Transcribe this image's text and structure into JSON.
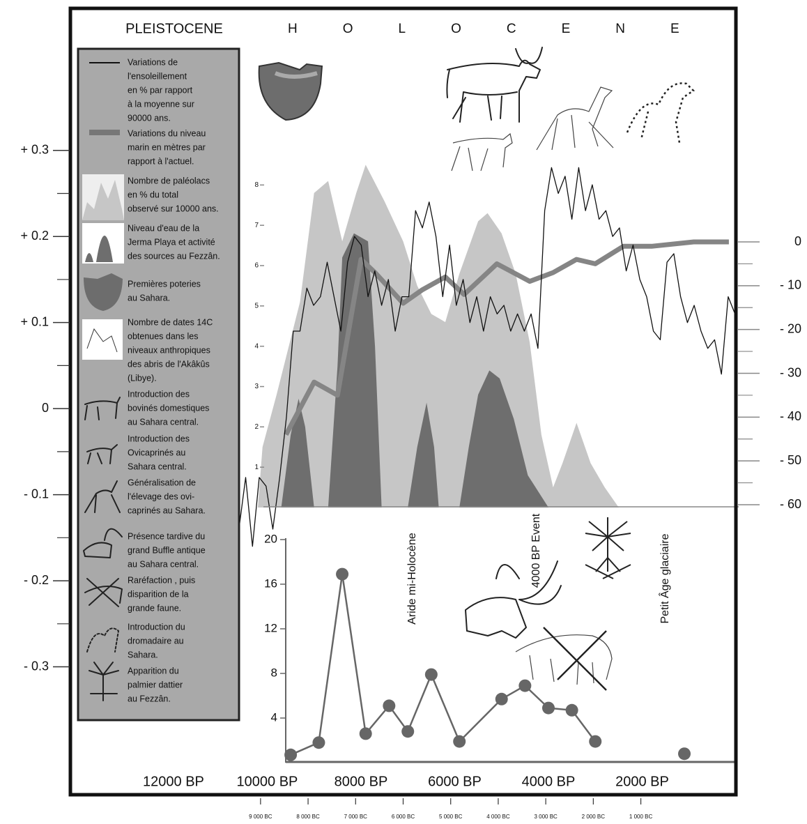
{
  "header": {
    "left": "PLEISTOCENE",
    "right": "HOLOCENE"
  },
  "legend": {
    "entries": [
      {
        "lines": [
          "Variations de",
          "l'ensoleillement",
          "en % par rapport",
          "à la moyenne sur",
          "90000 ans."
        ]
      },
      {
        "lines": [
          "Variations du niveau",
          "marin en mètres par",
          "rapport à l'actuel."
        ]
      },
      {
        "lines": [
          "Nombre de paléolacs",
          "en % du total",
          "observé sur 10000 ans."
        ]
      },
      {
        "lines": [
          "Niveau d'eau de la",
          "Jerma Playa et activité",
          "des sources au Fezzân."
        ]
      },
      {
        "lines": [
          "Premières poteries",
          "au Sahara."
        ]
      },
      {
        "lines": [
          "Nombre de dates 14C",
          "obtenues dans les",
          "niveaux anthropiques",
          "des abris de l'Akâkûs",
          "(Libye)."
        ]
      },
      {
        "lines": [
          "Introduction des",
          "bovinés domestiques",
          "au Sahara central."
        ]
      },
      {
        "lines": [
          "Introduction des",
          "Ovicaprinés au",
          "Sahara central."
        ]
      },
      {
        "lines": [
          "Généralisation de",
          "l'élevage des ovi-",
          "caprinés au Sahara."
        ]
      },
      {
        "lines": [
          "Présence tardive du",
          "grand Buffle antique",
          "au Sahara central."
        ]
      },
      {
        "lines": [
          "Raréfaction , puis",
          "disparition de la",
          "grande faune."
        ]
      },
      {
        "lines": [
          "Introduction du",
          "dromadaire au",
          "Sahara."
        ]
      },
      {
        "lines": [
          "Apparition du",
          "palmier dattier",
          "au Fezzân."
        ]
      }
    ]
  },
  "chart_data": [
    {
      "type": "line",
      "xlim": [
        14200,
        0
      ],
      "ylim": [
        -0.4,
        0.35
      ],
      "yticks": [
        {
          "value": 0.3,
          "label": "+ 0.3"
        },
        {
          "value": 0.2,
          "label": "+ 0.2"
        },
        {
          "value": 0.1,
          "label": "+ 0.1"
        },
        0,
        {
          "value": -0.1,
          "label": "- 0.1"
        },
        {
          "value": -0.2,
          "label": "- 0.2"
        },
        {
          "value": -0.3,
          "label": "- 0.3"
        }
      ],
      "y_minor_ticks": [
        0.25,
        0.15,
        0.05,
        -0.05,
        -0.15,
        -0.25
      ],
      "series": [
        {
          "color": "#111111",
          "line_width": 1.3,
          "x": [
            10750,
            10605,
            10460,
            10315,
            10170,
            10025,
            9880,
            9735,
            9590,
            9445,
            9300,
            9155,
            9010,
            8865,
            8720,
            8575,
            8430,
            8285,
            8140,
            7995,
            7850,
            7705,
            7560,
            7415,
            7270,
            7125,
            6980,
            6835,
            6690,
            6545,
            6400,
            6255,
            6110,
            5965,
            5820,
            5675,
            5530,
            5385,
            5240,
            5095,
            4950,
            4805,
            4660,
            4515,
            4370,
            4225,
            4080,
            3935,
            3790,
            3645,
            3500,
            3355,
            3210,
            3065,
            2920,
            2775,
            2630,
            2485,
            2340,
            2195,
            2050,
            1905,
            1760,
            1615,
            1470,
            1325,
            1180,
            1035,
            890,
            745,
            600,
            455,
            310,
            165,
            20
          ],
          "values": [
            -0.09,
            -0.14,
            -0.08,
            -0.16,
            -0.08,
            -0.09,
            -0.14,
            -0.08,
            -0.01,
            0.09,
            0.09,
            0.14,
            0.12,
            0.13,
            0.17,
            0.13,
            0.09,
            0.17,
            0.2,
            0.19,
            0.13,
            0.16,
            0.12,
            0.15,
            0.09,
            0.13,
            0.13,
            0.23,
            0.21,
            0.24,
            0.2,
            0.13,
            0.19,
            0.12,
            0.15,
            0.1,
            0.13,
            0.09,
            0.13,
            0.11,
            0.12,
            0.09,
            0.11,
            0.09,
            0.11,
            0.07,
            0.23,
            0.28,
            0.25,
            0.27,
            0.22,
            0.28,
            0.23,
            0.26,
            0.22,
            0.23,
            0.2,
            0.21,
            0.16,
            0.19,
            0.15,
            0.13,
            0.09,
            0.08,
            0.17,
            0.18,
            0.13,
            0.1,
            0.12,
            0.09,
            0.07,
            0.08,
            0.04,
            0.13,
            0.11
          ]
        }
      ]
    },
    {
      "type": "line",
      "axis": "y2",
      "xlim": [
        14200,
        0
      ],
      "ylim": [
        -60,
        0
      ],
      "yticks": [
        0,
        {
          "value": -10,
          "label": "- 10"
        },
        {
          "value": -20,
          "label": "- 20"
        },
        {
          "value": -30,
          "label": "- 30"
        },
        {
          "value": -40,
          "label": "- 40"
        },
        {
          "value": -50,
          "label": "- 50"
        },
        {
          "value": -60,
          "label": "- 60"
        }
      ],
      "y_minor_ticks": [
        -5,
        -15,
        -25,
        -35,
        -45,
        -55
      ],
      "series": [
        {
          "color": "#858585",
          "line_width": 7,
          "x": [
            9600,
            9000,
            8500,
            8000,
            7700,
            7100,
            6700,
            6200,
            5800,
            5300,
            5100,
            4400,
            3900,
            3400,
            3000,
            2400,
            1800,
            900,
            150
          ],
          "values": [
            -44,
            -32,
            -35,
            -4,
            -7,
            -14,
            -11,
            -8,
            -12,
            -7,
            -5,
            -9,
            -7,
            -4,
            -5,
            -1,
            -1,
            0,
            0
          ]
        }
      ]
    },
    {
      "type": "area",
      "xlim": [
        14200,
        0
      ],
      "ylim": [
        0,
        8.3
      ],
      "yticks": [
        1,
        2,
        3,
        4,
        5,
        6,
        7,
        8
      ],
      "series": [
        {
          "color": "#c6c6c6",
          "x": [
            10200,
            10100,
            9800,
            9300,
            9000,
            8700,
            8400,
            8100,
            7900,
            7500,
            7100,
            6800,
            6500,
            6200,
            5900,
            5500,
            5300,
            5000,
            4700,
            4400,
            4150,
            3900,
            3700,
            3400,
            3100,
            2800,
            2500
          ],
          "values": [
            0,
            1.5,
            2.8,
            5.1,
            7.8,
            8.1,
            6.6,
            7.8,
            8.5,
            7.6,
            6.6,
            5.5,
            4.8,
            4.6,
            5.8,
            7.1,
            7.3,
            6.8,
            5.8,
            4.1,
            1.8,
            0.5,
            1.1,
            2.1,
            1.1,
            0.5,
            0
          ]
        },
        {
          "color": "#6e6e6e",
          "x": [
            9700,
            9500,
            9330,
            9190,
            9000,
            8700,
            8500,
            8400,
            8150,
            7850,
            7700,
            7560,
            7000,
            6800,
            6600,
            6440,
            6340,
            5900,
            5700,
            5500,
            5260,
            5040,
            4740,
            4440,
            4000
          ],
          "values": [
            0,
            1.8,
            2.7,
            2,
            0,
            0,
            3.5,
            6.2,
            6.8,
            6.6,
            4,
            0,
            0,
            1.5,
            2.6,
            1.5,
            0,
            0,
            1.5,
            2.8,
            3.4,
            3.2,
            2.2,
            0.8,
            0
          ]
        }
      ]
    },
    {
      "type": "line",
      "markers": true,
      "xlim": [
        14200,
        0
      ],
      "ylim": [
        0,
        20
      ],
      "yticks": [
        4,
        8,
        12,
        16,
        20
      ],
      "xticks": [
        {
          "value": 12000,
          "label": "12000 BP"
        },
        {
          "value": 10000,
          "label": "10000 BP"
        },
        {
          "value": 8000,
          "label": "8000 BP"
        },
        {
          "value": 6000,
          "label": "6000 BP"
        },
        {
          "value": 4000,
          "label": "4000 BP"
        },
        {
          "value": 2000,
          "label": "2000 BP"
        }
      ],
      "x2lim": [
        13000,
        -1000
      ],
      "x2ticks": [
        {
          "value": 9000,
          "label": "9 000 BC"
        },
        {
          "value": 8000,
          "label": "8 000 BC"
        },
        {
          "value": 7000,
          "label": "7 000 BC"
        },
        {
          "value": 6000,
          "label": "6 000 BC"
        },
        {
          "value": 5000,
          "label": "5 000 BC"
        },
        {
          "value": 4000,
          "label": "4 000 BC"
        },
        {
          "value": 3000,
          "label": "3 000 BC"
        },
        {
          "value": 2000,
          "label": "2 000 BC"
        },
        {
          "value": 1000,
          "label": "1 000 BC"
        }
      ],
      "annotations": [
        "Aride mi-Holocène",
        "4000 BP Event",
        "Petit Âge glaciaire"
      ],
      "series": [
        {
          "color": "#666666",
          "x": [
            9500,
            8900,
            8400,
            7900,
            7400,
            7000,
            6500,
            5900,
            5000,
            4500,
            4000,
            3500,
            3000
          ],
          "values": [
            0.7,
            1.8,
            16.9,
            2.6,
            5.1,
            2.8,
            7.9,
            1.9,
            5.7,
            6.9,
            4.9,
            4.7,
            1.9
          ]
        },
        {
          "color": "#666666",
          "x": [
            1100
          ],
          "values": [
            0.8
          ]
        }
      ]
    }
  ]
}
